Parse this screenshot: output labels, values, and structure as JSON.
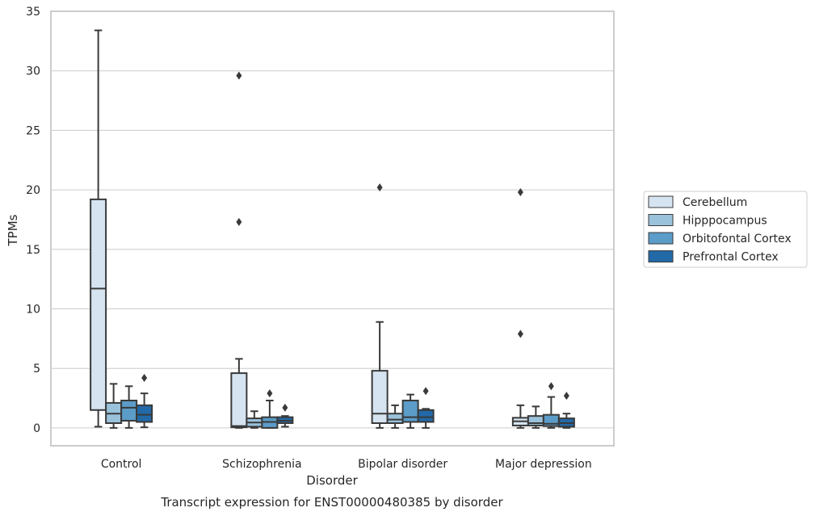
{
  "chart_data": {
    "type": "box",
    "title": "Transcript expression for ENST00000480385 by disorder",
    "xlabel": "Disorder",
    "ylabel": "TPMs",
    "ylim": [
      -1.5,
      35
    ],
    "yticks": [
      0,
      5,
      10,
      15,
      20,
      25,
      30,
      35
    ],
    "grid": true,
    "legend_position": "right",
    "categories": [
      "Control",
      "Schizophrenia",
      "Bipolar disorder",
      "Major depression"
    ],
    "series": [
      {
        "name": "Cerebellum",
        "color": "#d6e4f2",
        "boxes": [
          {
            "q1": 1.5,
            "median": 11.7,
            "q3": 19.2,
            "whisker_low": 0.1,
            "whisker_high": 33.4,
            "outliers": []
          },
          {
            "q1": 0.05,
            "median": 0.15,
            "q3": 4.6,
            "whisker_low": 0.0,
            "whisker_high": 5.8,
            "outliers": [
              17.3,
              29.6
            ]
          },
          {
            "q1": 0.4,
            "median": 1.2,
            "q3": 4.8,
            "whisker_low": 0.0,
            "whisker_high": 8.9,
            "outliers": [
              20.2
            ]
          },
          {
            "q1": 0.2,
            "median": 0.55,
            "q3": 0.85,
            "whisker_low": 0.0,
            "whisker_high": 1.9,
            "outliers": [
              7.9,
              19.8
            ]
          }
        ]
      },
      {
        "name": "Hipppocampus",
        "color": "#9ac2db",
        "boxes": [
          {
            "q1": 0.4,
            "median": 1.2,
            "q3": 2.1,
            "whisker_low": 0.0,
            "whisker_high": 3.7,
            "outliers": []
          },
          {
            "q1": 0.1,
            "median": 0.45,
            "q3": 0.8,
            "whisker_low": 0.0,
            "whisker_high": 1.4,
            "outliers": []
          },
          {
            "q1": 0.4,
            "median": 0.7,
            "q3": 1.2,
            "whisker_low": 0.0,
            "whisker_high": 1.9,
            "outliers": []
          },
          {
            "q1": 0.2,
            "median": 0.4,
            "q3": 1.0,
            "whisker_low": 0.0,
            "whisker_high": 1.8,
            "outliers": []
          }
        ]
      },
      {
        "name": "Orbitofontal Cortex",
        "color": "#5b9cc8",
        "boxes": [
          {
            "q1": 0.6,
            "median": 1.7,
            "q3": 2.3,
            "whisker_low": 0.0,
            "whisker_high": 3.5,
            "outliers": []
          },
          {
            "q1": 0.0,
            "median": 0.5,
            "q3": 0.9,
            "whisker_low": 0.0,
            "whisker_high": 2.3,
            "outliers": [
              2.9
            ]
          },
          {
            "q1": 0.5,
            "median": 0.9,
            "q3": 2.3,
            "whisker_low": 0.0,
            "whisker_high": 2.8,
            "outliers": []
          },
          {
            "q1": 0.15,
            "median": 0.35,
            "q3": 1.1,
            "whisker_low": 0.0,
            "whisker_high": 2.6,
            "outliers": [
              3.5
            ]
          }
        ]
      },
      {
        "name": "Prefrontal Cortex",
        "color": "#2269a8",
        "boxes": [
          {
            "q1": 0.5,
            "median": 1.1,
            "q3": 1.9,
            "whisker_low": 0.05,
            "whisker_high": 2.9,
            "outliers": [
              4.2
            ]
          },
          {
            "q1": 0.4,
            "median": 0.6,
            "q3": 0.9,
            "whisker_low": 0.1,
            "whisker_high": 1.0,
            "outliers": [
              1.7
            ]
          },
          {
            "q1": 0.5,
            "median": 0.9,
            "q3": 1.5,
            "whisker_low": 0.0,
            "whisker_high": 1.6,
            "outliers": [
              3.1
            ]
          },
          {
            "q1": 0.1,
            "median": 0.4,
            "q3": 0.8,
            "whisker_low": 0.0,
            "whisker_high": 1.2,
            "outliers": [
              2.7
            ]
          }
        ]
      }
    ]
  }
}
